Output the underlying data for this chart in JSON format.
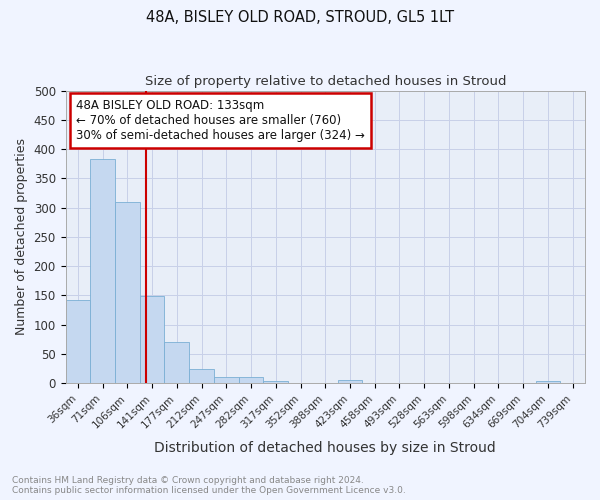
{
  "title1": "48A, BISLEY OLD ROAD, STROUD, GL5 1LT",
  "title2": "Size of property relative to detached houses in Stroud",
  "xlabel": "Distribution of detached houses by size in Stroud",
  "ylabel": "Number of detached properties",
  "bar_labels": [
    "36sqm",
    "71sqm",
    "106sqm",
    "141sqm",
    "177sqm",
    "212sqm",
    "247sqm",
    "282sqm",
    "317sqm",
    "352sqm",
    "388sqm",
    "423sqm",
    "458sqm",
    "493sqm",
    "528sqm",
    "563sqm",
    "598sqm",
    "634sqm",
    "669sqm",
    "704sqm",
    "739sqm"
  ],
  "bar_values": [
    143,
    383,
    309,
    149,
    70,
    24,
    11,
    10,
    4,
    0,
    0,
    5,
    0,
    0,
    0,
    0,
    0,
    0,
    0,
    4,
    0
  ],
  "bar_color": "#c5d8f0",
  "bar_edge_color": "#7aafd4",
  "vline_color": "#cc0000",
  "annotation_text": "48A BISLEY OLD ROAD: 133sqm\n← 70% of detached houses are smaller (760)\n30% of semi-detached houses are larger (324) →",
  "annotation_box_color": "#cc0000",
  "ylim": [
    0,
    500
  ],
  "yticks": [
    0,
    50,
    100,
    150,
    200,
    250,
    300,
    350,
    400,
    450,
    500
  ],
  "footer_text": "Contains HM Land Registry data © Crown copyright and database right 2024.\nContains public sector information licensed under the Open Government Licence v3.0.",
  "fig_bg_color": "#f0f4ff",
  "plot_bg_color": "#e8eef8",
  "grid_color": "#c8d0e8",
  "title1_fontsize": 10.5,
  "title2_fontsize": 9.5,
  "xlabel_fontsize": 10,
  "ylabel_fontsize": 9
}
